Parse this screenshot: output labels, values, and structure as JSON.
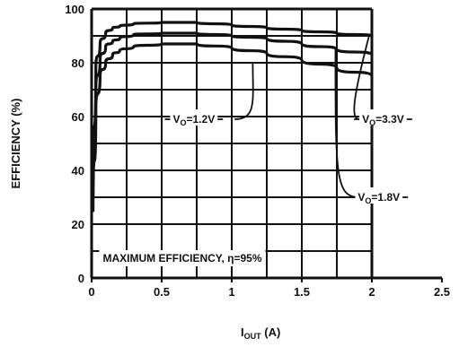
{
  "chart_data": {
    "type": "line",
    "title": "",
    "xlabel": {
      "main": "I",
      "sub": "OUT",
      "unit": " (A)"
    },
    "ylabel": "EFFICIENCY (%)",
    "xlim": [
      0,
      2.5
    ],
    "ylim": [
      0,
      100
    ],
    "xticks": [
      0,
      0.5,
      1,
      1.5,
      2,
      2.5
    ],
    "xtick_labels": [
      "0",
      "0.5",
      "1",
      "1.5",
      "2",
      "2.5"
    ],
    "yticks": [
      0,
      20,
      40,
      60,
      80,
      100
    ],
    "ytick_labels": [
      "0",
      "20",
      "40",
      "60",
      "80",
      "100"
    ],
    "grid": true,
    "annotation": "MAXIMUM EFFICIENCY, η=95%",
    "series": [
      {
        "name": "VO=3.3V",
        "label": {
          "main": "V",
          "sub": "O",
          "rest": "=3.3V"
        },
        "x": [
          0.01,
          0.03,
          0.06,
          0.1,
          0.15,
          0.2,
          0.3,
          0.5,
          0.75,
          1.0,
          1.25,
          1.5,
          1.75,
          2.0
        ],
        "y": [
          35,
          78,
          87,
          91,
          93,
          93.5,
          94.5,
          95,
          95,
          94,
          93,
          92,
          91,
          90
        ]
      },
      {
        "name": "VO=1.8V",
        "label": {
          "main": "V",
          "sub": "O",
          "rest": "=1.8V"
        },
        "x": [
          0.01,
          0.03,
          0.06,
          0.1,
          0.15,
          0.2,
          0.3,
          0.5,
          0.75,
          1.0,
          1.25,
          1.5,
          1.75,
          2.0
        ],
        "y": [
          30,
          70,
          81,
          86,
          88,
          89,
          90.5,
          91,
          91,
          90,
          89,
          87,
          85,
          83
        ]
      },
      {
        "name": "VO=1.2V",
        "label": {
          "main": "V",
          "sub": "O",
          "rest": "=1.2V"
        },
        "x": [
          0.01,
          0.03,
          0.06,
          0.1,
          0.15,
          0.2,
          0.3,
          0.5,
          0.75,
          1.0,
          1.25,
          1.5,
          1.75,
          2.0
        ],
        "y": [
          25,
          62,
          75,
          80,
          83,
          84.5,
          86,
          87,
          87,
          85.5,
          83.5,
          81,
          78,
          75
        ]
      }
    ]
  }
}
